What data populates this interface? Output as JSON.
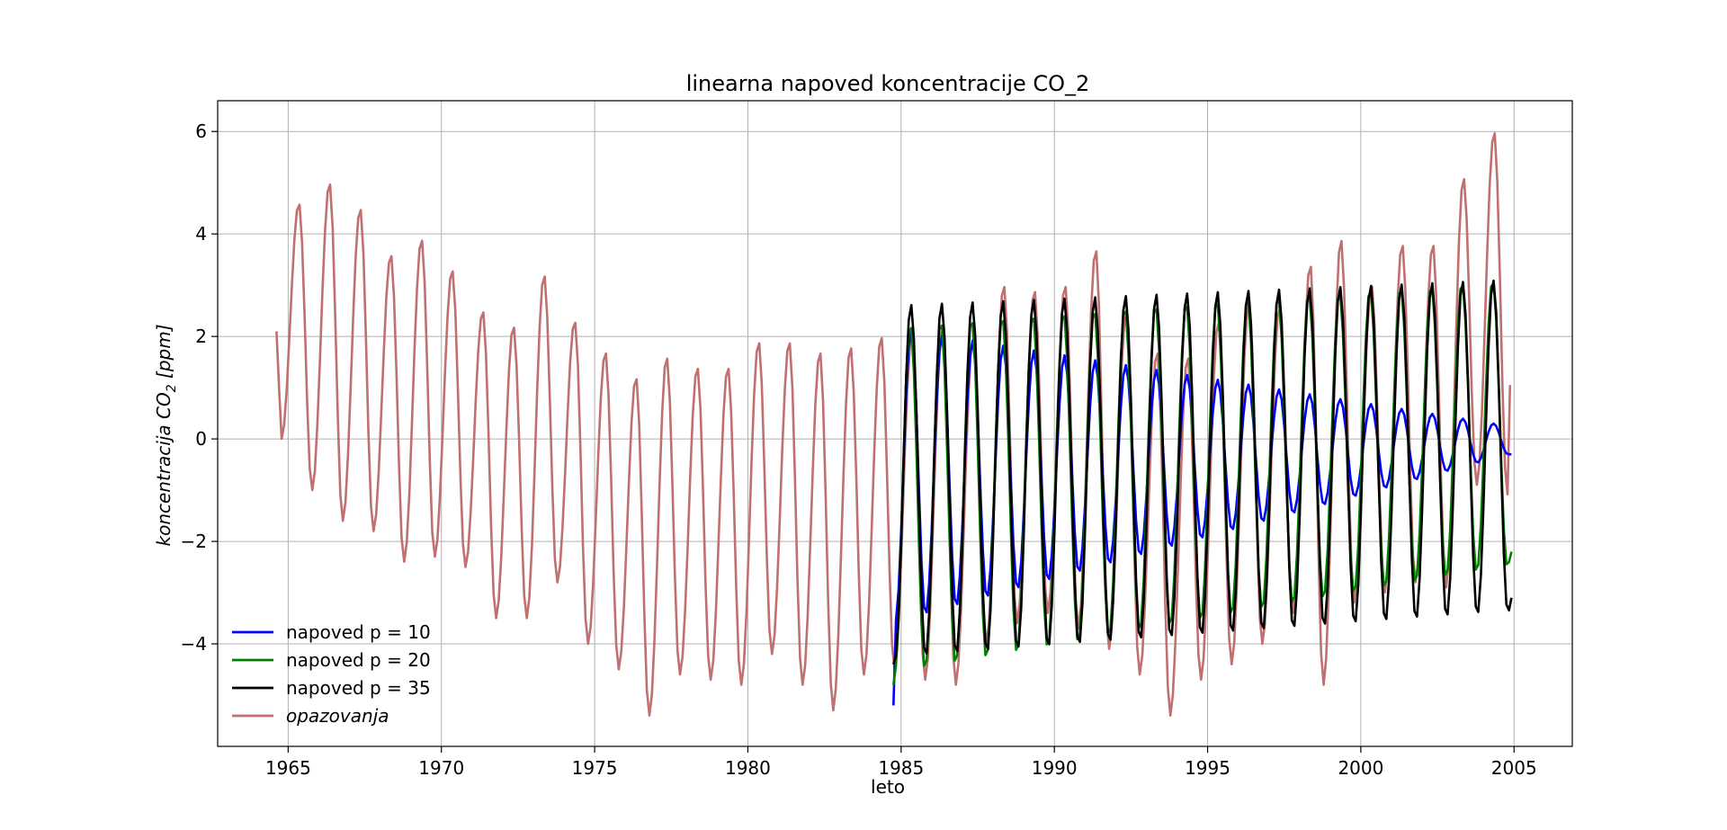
{
  "chart_data": {
    "type": "line",
    "title": "linearna napoved koncentracije CO_2",
    "xlabel": "leto",
    "ylabel": {
      "prefix": "koncentracija CO",
      "subscript": "2",
      "suffix": " [ppm]"
    },
    "xlim": [
      1962.7,
      2006.9
    ],
    "ylim": [
      -6.0,
      6.6
    ],
    "x_ticks": [
      1965,
      1970,
      1975,
      1980,
      1985,
      1990,
      1995,
      2000,
      2005
    ],
    "x_tick_labels": [
      "1965",
      "1970",
      "1975",
      "1980",
      "1985",
      "1990",
      "1995",
      "2000",
      "2005"
    ],
    "y_ticks": [
      6,
      4,
      2,
      0,
      -2,
      -4
    ],
    "y_tick_labels": [
      "6",
      "4",
      "2",
      "0",
      "−2",
      "−4"
    ],
    "grid": true,
    "legend_position": "lower-left",
    "series": [
      {
        "name": "napoved p = 10",
        "color": "#0000ff",
        "x_start": 1984.75,
        "x_end": 2004.92,
        "peak_start": 2.2,
        "peak_end": 0.3,
        "trough_start": -3.6,
        "trough_end": -0.3,
        "start_value": -5.2,
        "end_value": -0.3,
        "peak_phase": 0.33,
        "trough_phase": 0.8
      },
      {
        "name": "napoved p = 20",
        "color": "#008000",
        "x_start": 1984.75,
        "x_end": 2004.92,
        "peak_start": 2.2,
        "peak_end": 3.1,
        "trough_start": -4.6,
        "trough_end": -2.5,
        "start_value": -4.8,
        "end_value": -2.2,
        "peak_phase": 0.3,
        "trough_phase": 0.78
      },
      {
        "name": "napoved p = 35",
        "color": "#000000",
        "x_start": 1984.75,
        "x_end": 2004.92,
        "peak_start": 2.6,
        "peak_end": 3.1,
        "trough_start": -4.3,
        "trough_end": -3.4,
        "start_value": -4.4,
        "end_value": -3.1,
        "peak_phase": 0.32,
        "trough_phase": 0.8
      },
      {
        "name": "opazovanja",
        "name_style": "italic",
        "color": "#c07070",
        "x_start": 1964.62,
        "x_end": 2004.92,
        "start_value": 2.1,
        "end_value": 1.9,
        "peak_phase": 0.35,
        "trough_phase": 0.78,
        "yearly_peaks": [
          {
            "year": 1965,
            "value": 4.6
          },
          {
            "year": 1966,
            "value": 5.0
          },
          {
            "year": 1967,
            "value": 4.5
          },
          {
            "year": 1968,
            "value": 3.6
          },
          {
            "year": 1969,
            "value": 3.9
          },
          {
            "year": 1970,
            "value": 3.3
          },
          {
            "year": 1971,
            "value": 2.5
          },
          {
            "year": 1972,
            "value": 2.2
          },
          {
            "year": 1973,
            "value": 3.2
          },
          {
            "year": 1974,
            "value": 2.3
          },
          {
            "year": 1975,
            "value": 1.7
          },
          {
            "year": 1976,
            "value": 1.2
          },
          {
            "year": 1977,
            "value": 1.6
          },
          {
            "year": 1978,
            "value": 1.4
          },
          {
            "year": 1979,
            "value": 1.4
          },
          {
            "year": 1980,
            "value": 1.9
          },
          {
            "year": 1981,
            "value": 1.9
          },
          {
            "year": 1982,
            "value": 1.7
          },
          {
            "year": 1983,
            "value": 1.8
          },
          {
            "year": 1984,
            "value": 2.0
          },
          {
            "year": 1985,
            "value": 2.0
          },
          {
            "year": 1986,
            "value": 2.2
          },
          {
            "year": 1987,
            "value": 2.0
          },
          {
            "year": 1988,
            "value": 3.0
          },
          {
            "year": 1989,
            "value": 2.9
          },
          {
            "year": 1990,
            "value": 3.0
          },
          {
            "year": 1991,
            "value": 3.7
          },
          {
            "year": 1992,
            "value": 2.5
          },
          {
            "year": 1993,
            "value": 1.7
          },
          {
            "year": 1994,
            "value": 1.6
          },
          {
            "year": 1995,
            "value": 2.3
          },
          {
            "year": 1996,
            "value": 2.7
          },
          {
            "year": 1997,
            "value": 2.6
          },
          {
            "year": 1998,
            "value": 3.4
          },
          {
            "year": 1999,
            "value": 3.9
          },
          {
            "year": 2000,
            "value": 3.0
          },
          {
            "year": 2001,
            "value": 3.8
          },
          {
            "year": 2002,
            "value": 3.8
          },
          {
            "year": 2003,
            "value": 5.1
          },
          {
            "year": 2004,
            "value": 6.0
          }
        ],
        "yearly_troughs": [
          {
            "year": 1964,
            "value": 0.0
          },
          {
            "year": 1965,
            "value": -1.0
          },
          {
            "year": 1966,
            "value": -1.6
          },
          {
            "year": 1967,
            "value": -1.8
          },
          {
            "year": 1968,
            "value": -2.4
          },
          {
            "year": 1969,
            "value": -2.3
          },
          {
            "year": 1970,
            "value": -2.5
          },
          {
            "year": 1971,
            "value": -3.5
          },
          {
            "year": 1972,
            "value": -3.5
          },
          {
            "year": 1973,
            "value": -2.8
          },
          {
            "year": 1974,
            "value": -4.0
          },
          {
            "year": 1975,
            "value": -4.5
          },
          {
            "year": 1976,
            "value": -5.4
          },
          {
            "year": 1977,
            "value": -4.6
          },
          {
            "year": 1978,
            "value": -4.7
          },
          {
            "year": 1979,
            "value": -4.8
          },
          {
            "year": 1980,
            "value": -4.2
          },
          {
            "year": 1981,
            "value": -4.8
          },
          {
            "year": 1982,
            "value": -5.3
          },
          {
            "year": 1983,
            "value": -4.6
          },
          {
            "year": 1984,
            "value": -4.5
          },
          {
            "year": 1985,
            "value": -4.7
          },
          {
            "year": 1986,
            "value": -4.8
          },
          {
            "year": 1987,
            "value": -4.0
          },
          {
            "year": 1988,
            "value": -3.6
          },
          {
            "year": 1989,
            "value": -3.4
          },
          {
            "year": 1990,
            "value": -3.7
          },
          {
            "year": 1991,
            "value": -4.1
          },
          {
            "year": 1992,
            "value": -4.6
          },
          {
            "year": 1993,
            "value": -5.4
          },
          {
            "year": 1994,
            "value": -4.7
          },
          {
            "year": 1995,
            "value": -4.4
          },
          {
            "year": 1996,
            "value": -4.0
          },
          {
            "year": 1997,
            "value": -3.4
          },
          {
            "year": 1998,
            "value": -4.8
          },
          {
            "year": 1999,
            "value": -3.2
          },
          {
            "year": 2000,
            "value": -3.0
          },
          {
            "year": 2001,
            "value": -2.8
          },
          {
            "year": 2002,
            "value": -2.9
          },
          {
            "year": 2003,
            "value": -0.9
          },
          {
            "year": 2004,
            "value": -1.1
          }
        ]
      }
    ]
  }
}
